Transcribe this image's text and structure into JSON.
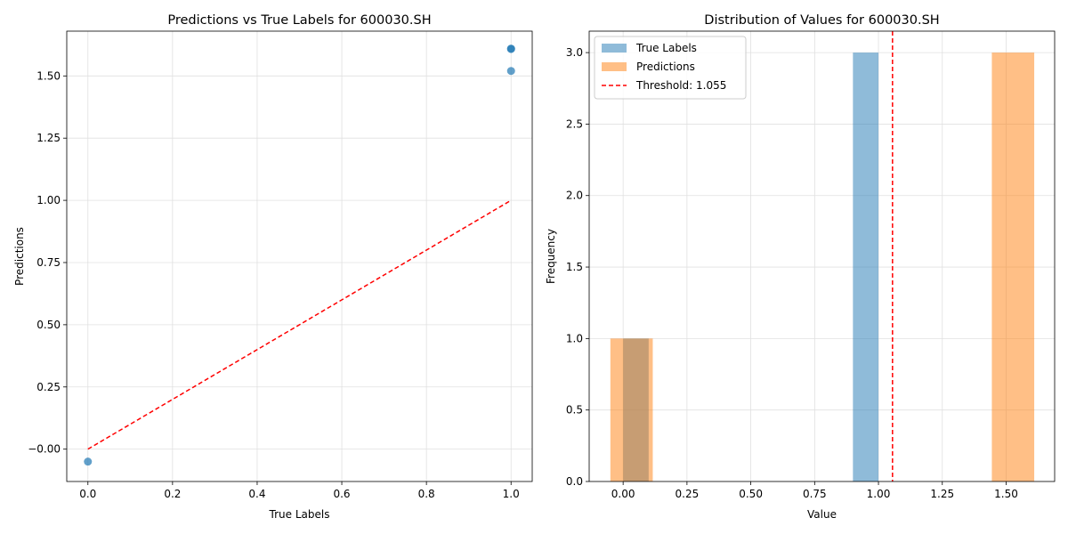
{
  "chart_data": [
    {
      "type": "scatter",
      "title": "Predictions vs True Labels for 600030.SH",
      "xlabel": "True Labels",
      "ylabel": "Predictions",
      "xlim": [
        -0.05,
        1.05
      ],
      "ylim": [
        -0.13,
        1.68
      ],
      "xticks": [
        0.0,
        0.2,
        0.4,
        0.6,
        0.8,
        1.0
      ],
      "xtick_labels": [
        "0.0",
        "0.2",
        "0.4",
        "0.6",
        "0.8",
        "1.0"
      ],
      "yticks": [
        0.0,
        0.25,
        0.5,
        0.75,
        1.0,
        1.25,
        1.5
      ],
      "ytick_labels": [
        "−0.00",
        "0.25",
        "0.50",
        "0.75",
        "1.00",
        "1.25",
        "1.50"
      ],
      "grid": true,
      "point_color": "#1f77b4",
      "points": [
        {
          "x": 0.0,
          "y": -0.05
        },
        {
          "x": 1.0,
          "y": 1.61
        },
        {
          "x": 1.0,
          "y": 1.608
        },
        {
          "x": 1.0,
          "y": 1.52
        }
      ],
      "reference_line": {
        "x": [
          0,
          1
        ],
        "y": [
          0,
          1
        ],
        "color": "#ff0000",
        "style": "dashed"
      }
    },
    {
      "type": "histogram",
      "title": "Distribution of Values for 600030.SH",
      "xlabel": "Value",
      "ylabel": "Frequency",
      "xlim": [
        -0.133,
        1.69
      ],
      "ylim": [
        0,
        3.15
      ],
      "xticks": [
        0.0,
        0.25,
        0.5,
        0.75,
        1.0,
        1.25,
        1.5
      ],
      "xtick_labels": [
        "0.00",
        "0.25",
        "0.50",
        "0.75",
        "1.00",
        "1.25",
        "1.50"
      ],
      "yticks": [
        0.0,
        0.5,
        1.0,
        1.5,
        2.0,
        2.5,
        3.0
      ],
      "ytick_labels": [
        "0.0",
        "0.5",
        "1.0",
        "1.5",
        "2.0",
        "2.5",
        "3.0"
      ],
      "grid": true,
      "legend_placement": "top-left",
      "series": [
        {
          "name": "True Labels",
          "color": "#1f77b4",
          "opacity": 0.5,
          "bins": [
            {
              "start": 0.0,
              "end": 0.1,
              "count": 1
            },
            {
              "start": 0.9,
              "end": 1.0,
              "count": 3
            }
          ]
        },
        {
          "name": "Predictions",
          "color": "#ff7f0e",
          "opacity": 0.5,
          "bins": [
            {
              "start": -0.05,
              "end": 0.116,
              "count": 1
            },
            {
              "start": 1.444,
              "end": 1.61,
              "count": 3
            }
          ]
        }
      ],
      "threshold": {
        "value": 1.055,
        "label": "Threshold: 1.055",
        "color": "#ff0000",
        "style": "dashed"
      }
    }
  ]
}
